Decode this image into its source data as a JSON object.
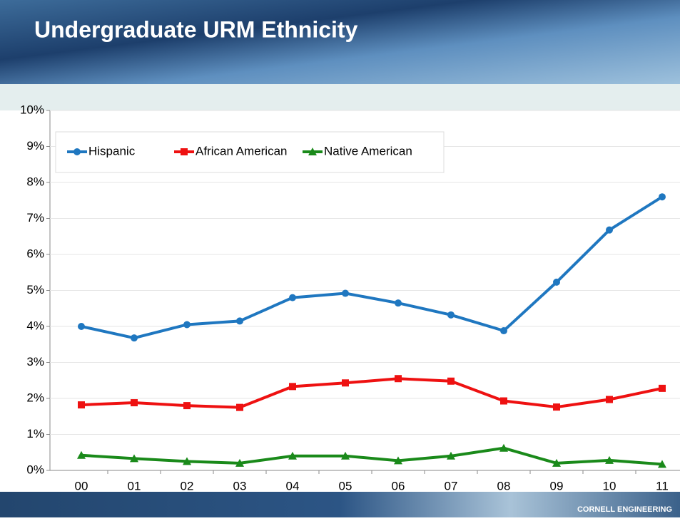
{
  "chart_data": {
    "type": "line",
    "title": "Undergraduate URM Ethnicity",
    "categories": [
      "00",
      "01",
      "02",
      "03",
      "04",
      "05",
      "06",
      "07",
      "08",
      "09",
      "10",
      "11"
    ],
    "series": [
      {
        "name": "Hispanic",
        "color": "#1f77c0",
        "marker": "circle",
        "values": [
          4.0,
          3.68,
          4.05,
          4.15,
          4.8,
          4.92,
          4.65,
          4.32,
          3.88,
          5.23,
          6.68,
          7.6
        ]
      },
      {
        "name": "African American",
        "color": "#ee1111",
        "marker": "square",
        "values": [
          1.82,
          1.88,
          1.8,
          1.75,
          2.33,
          2.43,
          2.55,
          2.48,
          1.93,
          1.76,
          1.97,
          2.28
        ]
      },
      {
        "name": "Native American",
        "color": "#1a8a1a",
        "marker": "triangle",
        "values": [
          0.42,
          0.33,
          0.25,
          0.2,
          0.4,
          0.4,
          0.27,
          0.4,
          0.62,
          0.2,
          0.28,
          0.17
        ]
      }
    ],
    "ylim": [
      0,
      10
    ],
    "yticks": [
      {
        "value": 0,
        "label": "0%"
      },
      {
        "value": 1,
        "label": "1%"
      },
      {
        "value": 2,
        "label": "2%"
      },
      {
        "value": 3,
        "label": "3%"
      },
      {
        "value": 4,
        "label": "4%"
      },
      {
        "value": 5,
        "label": "5%"
      },
      {
        "value": 6,
        "label": "6%"
      },
      {
        "value": 7,
        "label": "7%"
      },
      {
        "value": 8,
        "label": "8%"
      },
      {
        "value": 9,
        "label": "9%"
      },
      {
        "value": 10,
        "label": "10%"
      }
    ],
    "grid": true,
    "legend": "top-left"
  },
  "footer": "CORNELL ENGINEERING"
}
